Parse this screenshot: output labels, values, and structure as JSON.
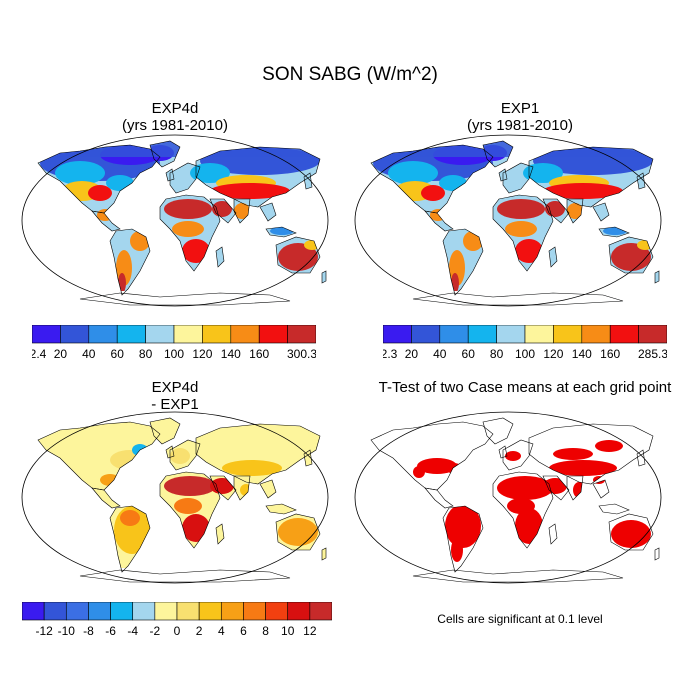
{
  "chart_data": [
    {
      "type": "heatmap",
      "panel": "top-left",
      "title": "EXP4d",
      "subtitle": "(yrs 1981-2010)",
      "colorbar": {
        "labels": [
          "2.4",
          "20",
          "40",
          "60",
          "80",
          "100",
          "120",
          "140",
          "160",
          "300.3"
        ],
        "min": 2.4,
        "max": 300.3,
        "levels": [
          20,
          40,
          60,
          80,
          100,
          120,
          140,
          160
        ]
      },
      "regions": [
        {
          "region": "Sahara & Arabia",
          "level": 9
        },
        {
          "region": "Australia interior",
          "level": 9
        },
        {
          "region": "Southern Africa",
          "level": 8
        },
        {
          "region": "Northern Asia",
          "level": 1
        },
        {
          "region": "North America high latitudes",
          "level": 1
        }
      ]
    },
    {
      "type": "heatmap",
      "panel": "top-right",
      "title": "EXP1",
      "subtitle": "(yrs 1981-2010)",
      "colorbar": {
        "labels": [
          "2.3",
          "20",
          "40",
          "60",
          "80",
          "100",
          "120",
          "140",
          "160",
          "285.3"
        ],
        "min": 2.3,
        "max": 285.3,
        "levels": [
          20,
          40,
          60,
          80,
          100,
          120,
          140,
          160
        ]
      }
    },
    {
      "type": "heatmap",
      "panel": "bottom-left",
      "title": "EXP4d",
      "subtitle": "- EXP1",
      "colorbar": {
        "labels": [
          "-12",
          "-10",
          "-8",
          "-6",
          "-4",
          "-2",
          "0",
          "2",
          "4",
          "6",
          "8",
          "10",
          "12"
        ],
        "levels": [
          -12,
          -10,
          -8,
          -6,
          -4,
          -2,
          0,
          2,
          4,
          6,
          8,
          10,
          12
        ]
      }
    },
    {
      "type": "heatmap",
      "panel": "bottom-right",
      "title": "T-Test of two Case means at each grid point",
      "note": "Cells are significant at 0.1 level",
      "significance_level": 0.1
    }
  ],
  "figure": {
    "title": "SON SABG (W/m^2)"
  },
  "colors": {
    "abs_scale": [
      "#3a1bf0",
      "#3355d8",
      "#2f8ee8",
      "#14b4ee",
      "#a4d6ee",
      "#fdf59c",
      "#f8c41a",
      "#f78c16",
      "#f21010",
      "#c72a2a"
    ],
    "diff_scale": [
      "#3a1bf0",
      "#3355d8",
      "#3b6fe4",
      "#2f8ee8",
      "#14b4ee",
      "#a4d6ee",
      "#fdf59c",
      "#f8e070",
      "#f8c41a",
      "#f7a016",
      "#f77a14",
      "#f24010",
      "#d81010",
      "#c72a2a"
    ],
    "significant": "#ee0000",
    "land_outline": "#000000"
  }
}
